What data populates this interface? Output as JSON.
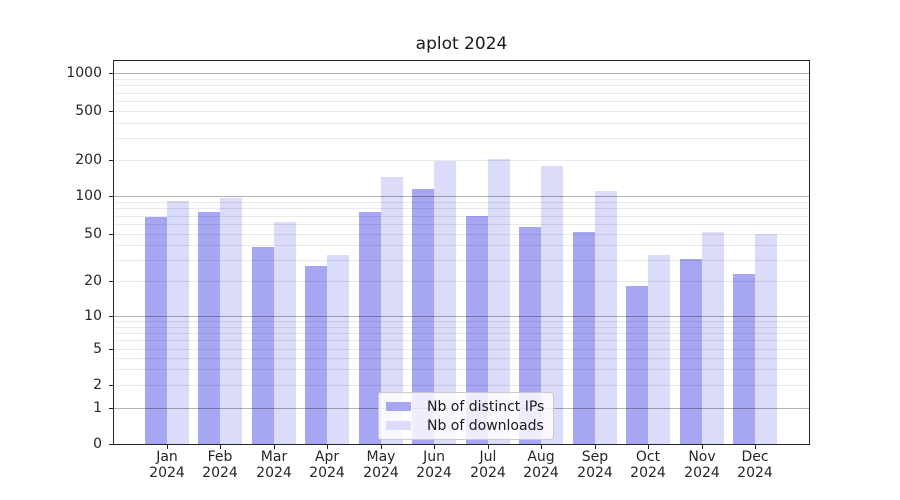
{
  "figure": {
    "title": "aplot 2024"
  },
  "axes": {
    "y_tick_labels": [
      "0",
      "1",
      "2",
      "5",
      "10",
      "20",
      "50",
      "100",
      "200",
      "500",
      "1000"
    ],
    "x_tick_months": [
      "Jan",
      "Feb",
      "Mar",
      "Apr",
      "May",
      "Jun",
      "Jul",
      "Aug",
      "Sep",
      "Oct",
      "Nov",
      "Dec"
    ],
    "x_tick_year": "2024"
  },
  "legend": {
    "items": [
      {
        "label": "Nb of distinct IPs",
        "color": "#a6a6f2"
      },
      {
        "label": "Nb of downloads",
        "color": "#dbdbfa"
      }
    ]
  },
  "colors": {
    "series_ips": "#a6a6f2",
    "series_downloads": "#dbdbfa",
    "grid_major": "rgba(0,0,0,0.30)",
    "grid_minor": "rgba(0,0,0,0.085)",
    "spine": "#262626"
  },
  "chart_data": {
    "type": "bar",
    "title": "aplot 2024",
    "categories": [
      "Jan 2024",
      "Feb 2024",
      "Mar 2024",
      "Apr 2024",
      "May 2024",
      "Jun 2024",
      "Jul 2024",
      "Aug 2024",
      "Sep 2024",
      "Oct 2024",
      "Nov 2024",
      "Dec 2024"
    ],
    "series": [
      {
        "name": "Nb of distinct IPs",
        "color": "#a6a6f2",
        "values": [
          68,
          75,
          39,
          27,
          75,
          114,
          70,
          57,
          52,
          18,
          31,
          23
        ]
      },
      {
        "name": "Nb of downloads",
        "color": "#dbdbfa",
        "values": [
          92,
          97,
          62,
          33,
          145,
          195,
          205,
          178,
          110,
          33,
          52,
          50
        ]
      }
    ],
    "xlabel": "",
    "ylabel": "",
    "yscale": "symlog",
    "y_ticks": [
      0,
      1,
      2,
      5,
      10,
      20,
      50,
      100,
      200,
      500,
      1000
    ],
    "ylim": [
      0,
      1250
    ],
    "grid": true,
    "legend_position": "lower center"
  }
}
